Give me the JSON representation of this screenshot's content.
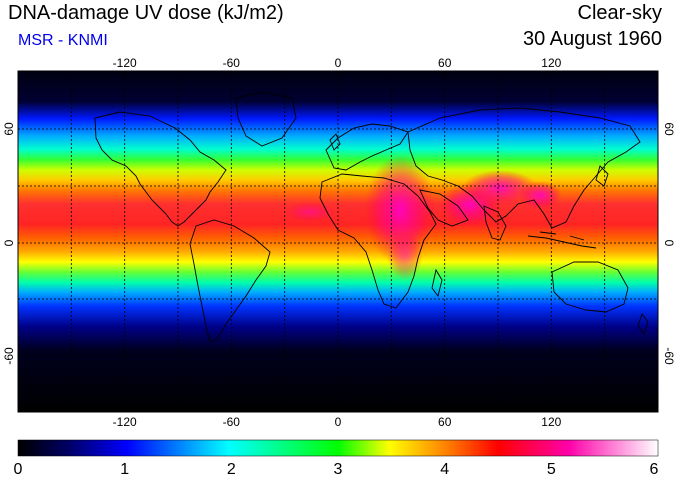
{
  "header": {
    "title": "DNA-damage UV dose (kJ/m2)",
    "subtitle": "MSR - KNMI",
    "condition": "Clear-sky",
    "date": "30 August 1960"
  },
  "map": {
    "projection": "equirectangular",
    "lon_range": [
      -180,
      180
    ],
    "lat_range": [
      -90,
      90
    ],
    "lon_ticks": [
      "-120",
      "-60",
      "0",
      "60",
      "120"
    ],
    "lon_tick_values": [
      -120,
      -60,
      0,
      60,
      120
    ],
    "lat_ticks": [
      "60",
      "0",
      "-60"
    ],
    "lat_tick_values": [
      60,
      0,
      -60
    ],
    "gridlines": "dashed every 30 degrees",
    "coastlines": true
  },
  "colorbar": {
    "min": 0,
    "max": 6,
    "labels": [
      "0",
      "1",
      "2",
      "3",
      "4",
      "5",
      "6"
    ],
    "colors": [
      "#000000",
      "#0000ff",
      "#00ffff",
      "#00ff00",
      "#ffff00",
      "#ff0000",
      "#ff00ff",
      "#ffffff"
    ]
  },
  "colors": {
    "title": "#000000",
    "subtitle": "#0000ee",
    "background": "#ffffff"
  }
}
